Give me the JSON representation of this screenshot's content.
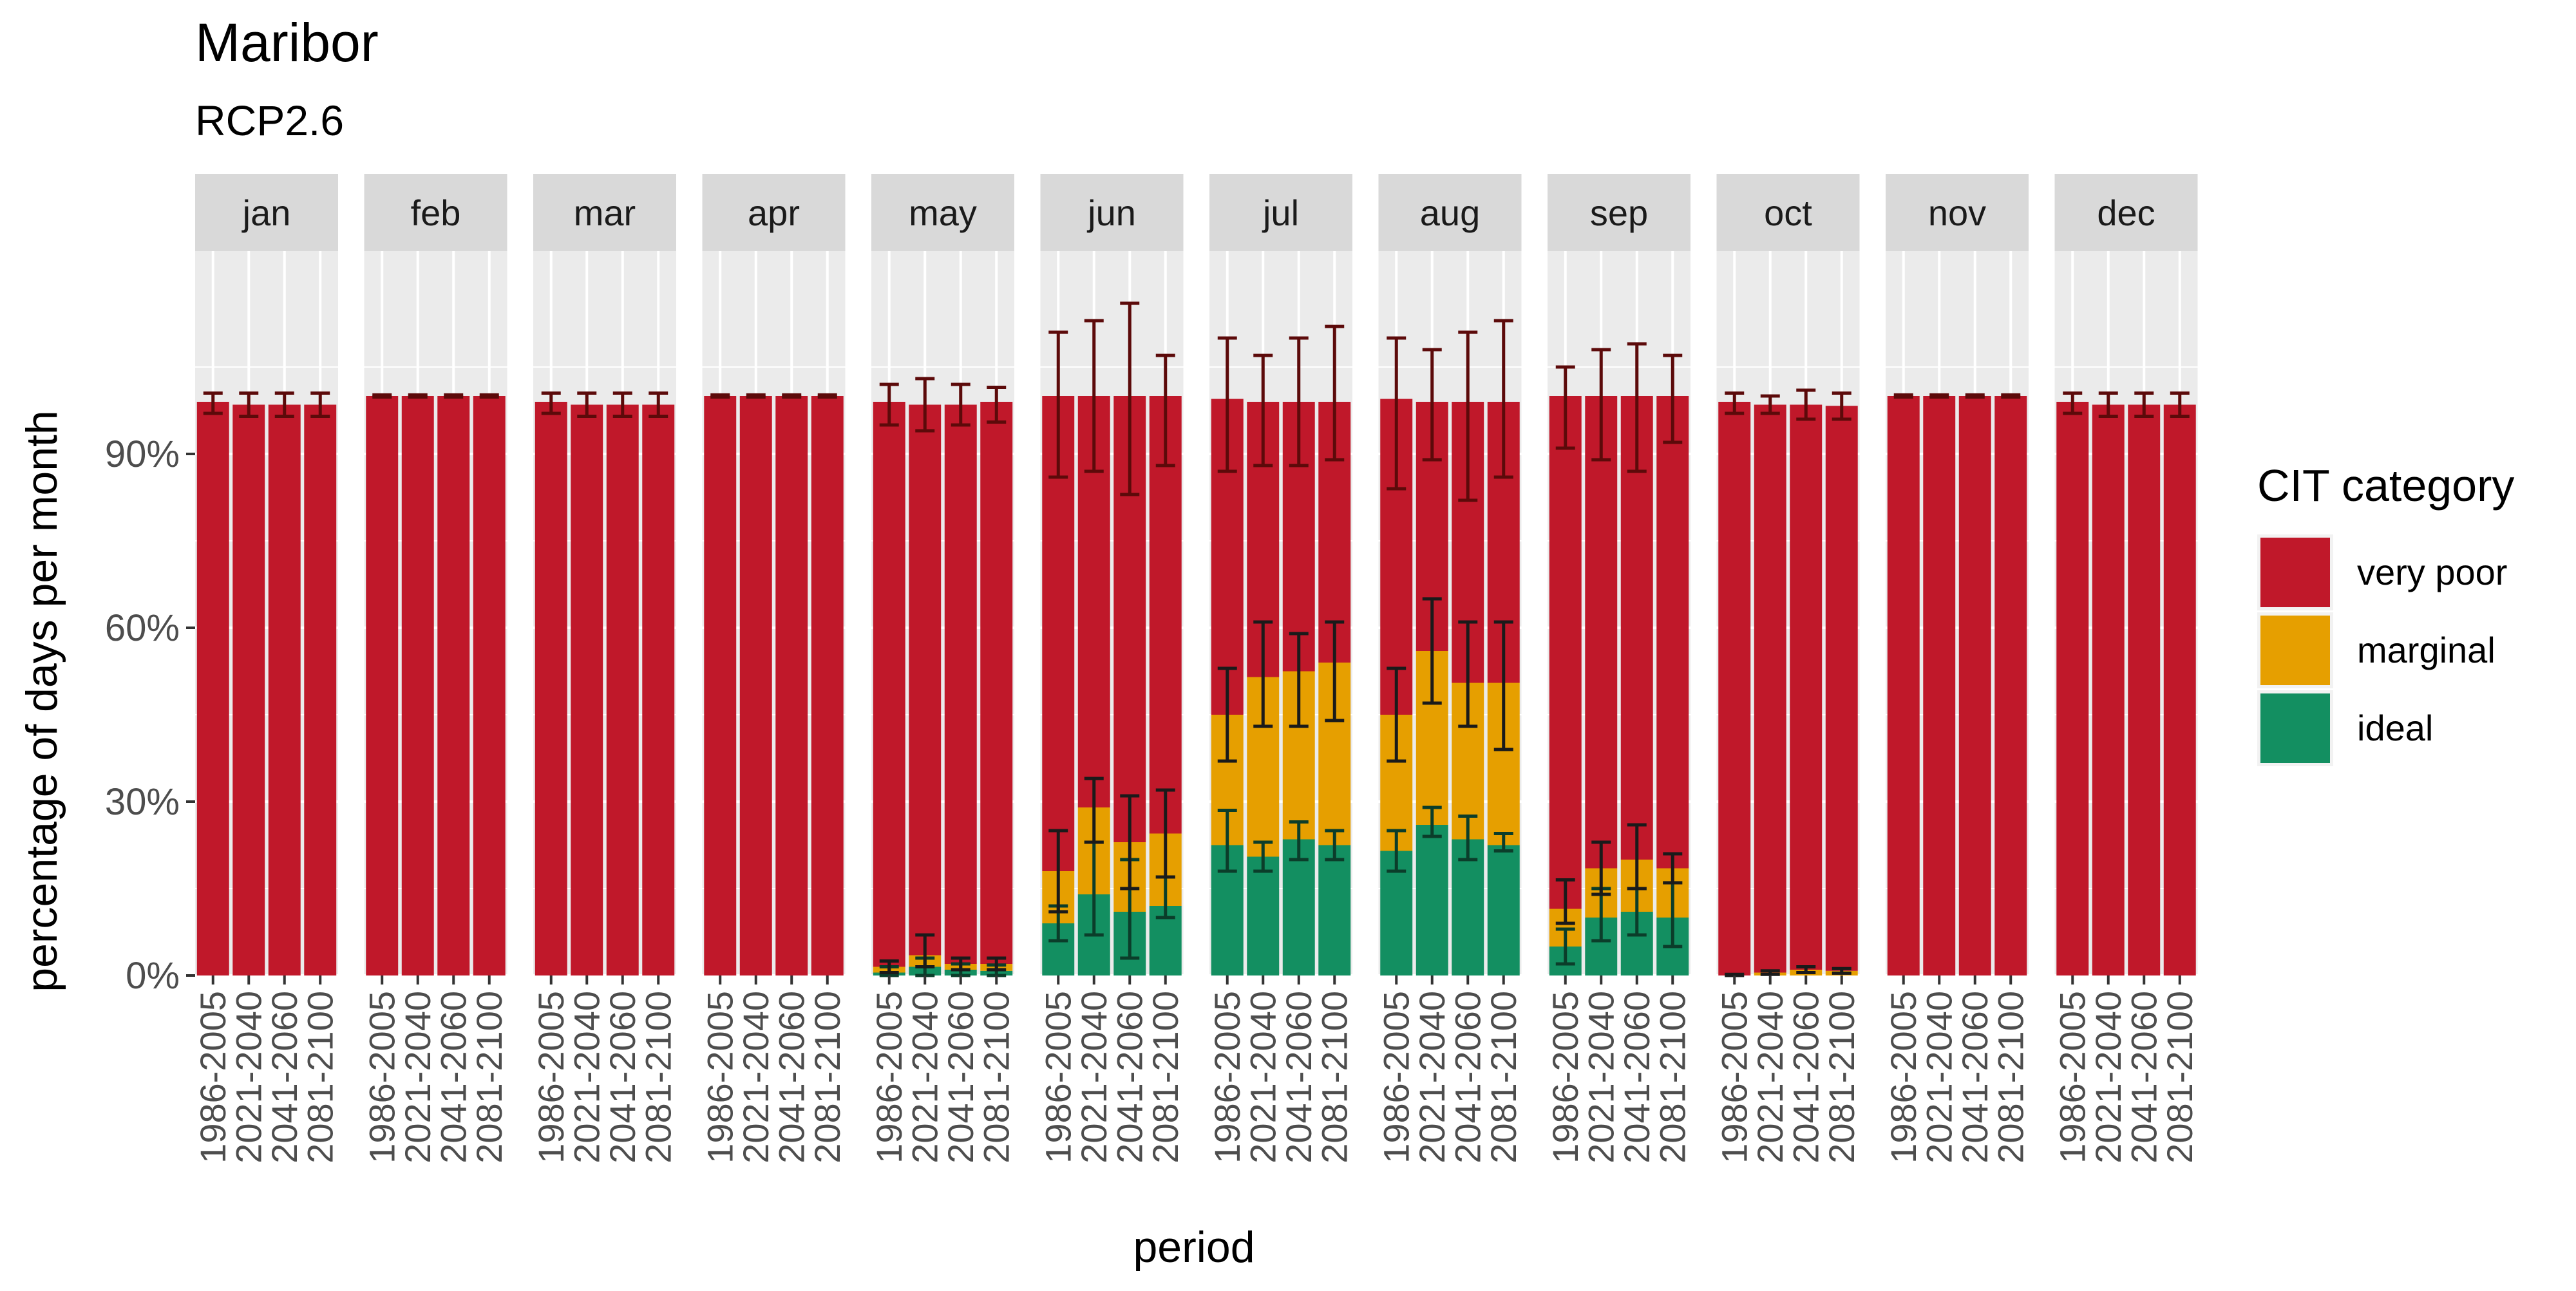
{
  "chart_data": {
    "type": "bar",
    "stacked": true,
    "title": "Maribor",
    "subtitle": "RCP2.6",
    "xlabel": "period",
    "ylabel": "percentage of days per month",
    "ylim": [
      0,
      1.25
    ],
    "yticks": [
      0,
      0.3,
      0.6,
      0.9
    ],
    "ytick_labels": [
      "0%",
      "30%",
      "60%",
      "90%"
    ],
    "grid": true,
    "legend_position": "right",
    "legend_title": "CIT category",
    "categories": [
      "1986-2005",
      "2021-2040",
      "2041-2060",
      "2081-2100"
    ],
    "series": [
      {
        "name": "very poor",
        "color": "#C0182A"
      },
      {
        "name": "marginal",
        "color": "#E69F00"
      },
      {
        "name": "ideal",
        "color": "#138F61"
      }
    ],
    "panels": [
      {
        "month": "jan",
        "ideal": [
          0,
          0,
          0,
          0
        ],
        "marginal": [
          0,
          0,
          0,
          0
        ],
        "very_poor": [
          0.99,
          0.985,
          0.985,
          0.985
        ],
        "err_ideal": [
          null,
          null,
          null,
          null
        ],
        "err_marginal": [
          null,
          null,
          null,
          null
        ],
        "err_total": [
          [
            0.97,
            1.005
          ],
          [
            0.965,
            1.005
          ],
          [
            0.965,
            1.005
          ],
          [
            0.965,
            1.005
          ]
        ]
      },
      {
        "month": "feb",
        "ideal": [
          0,
          0,
          0,
          0
        ],
        "marginal": [
          0,
          0,
          0,
          0
        ],
        "very_poor": [
          1.0,
          1.0,
          1.0,
          1.0
        ],
        "err_ideal": [
          null,
          null,
          null,
          null
        ],
        "err_marginal": [
          null,
          null,
          null,
          null
        ],
        "err_total": [
          [
            0.998,
            1.002
          ],
          [
            0.998,
            1.002
          ],
          [
            0.998,
            1.002
          ],
          [
            0.998,
            1.002
          ]
        ]
      },
      {
        "month": "mar",
        "ideal": [
          0,
          0,
          0,
          0
        ],
        "marginal": [
          0,
          0,
          0,
          0
        ],
        "very_poor": [
          0.99,
          0.985,
          0.985,
          0.985
        ],
        "err_ideal": [
          null,
          null,
          null,
          null
        ],
        "err_marginal": [
          null,
          null,
          null,
          null
        ],
        "err_total": [
          [
            0.97,
            1.005
          ],
          [
            0.965,
            1.005
          ],
          [
            0.965,
            1.005
          ],
          [
            0.965,
            1.005
          ]
        ]
      },
      {
        "month": "apr",
        "ideal": [
          0,
          0,
          0,
          0
        ],
        "marginal": [
          0,
          0,
          0,
          0
        ],
        "very_poor": [
          1.0,
          1.0,
          1.0,
          1.0
        ],
        "err_ideal": [
          null,
          null,
          null,
          null
        ],
        "err_marginal": [
          null,
          null,
          null,
          null
        ],
        "err_total": [
          [
            0.998,
            1.002
          ],
          [
            0.998,
            1.002
          ],
          [
            0.998,
            1.002
          ],
          [
            0.998,
            1.002
          ]
        ]
      },
      {
        "month": "may",
        "ideal": [
          0.005,
          0.015,
          0.01,
          0.008
        ],
        "marginal": [
          0.01,
          0.02,
          0.01,
          0.012
        ],
        "very_poor": [
          0.975,
          0.95,
          0.965,
          0.97
        ],
        "err_ideal": [
          [
            0.0,
            0.015
          ],
          [
            0.0,
            0.03
          ],
          [
            0.0,
            0.02
          ],
          [
            0.0,
            0.018
          ]
        ],
        "err_marginal": [
          [
            0.005,
            0.025
          ],
          [
            0.015,
            0.07
          ],
          [
            0.01,
            0.03
          ],
          [
            0.01,
            0.03
          ]
        ],
        "err_total": [
          [
            0.95,
            1.02
          ],
          [
            0.94,
            1.03
          ],
          [
            0.95,
            1.02
          ],
          [
            0.955,
            1.015
          ]
        ]
      },
      {
        "month": "jun",
        "ideal": [
          0.09,
          0.14,
          0.11,
          0.12
        ],
        "marginal": [
          0.09,
          0.15,
          0.12,
          0.125
        ],
        "very_poor": [
          0.82,
          0.71,
          0.77,
          0.755
        ],
        "err_ideal": [
          [
            0.06,
            0.12
          ],
          [
            0.07,
            0.23
          ],
          [
            0.03,
            0.2
          ],
          [
            0.1,
            0.17
          ]
        ],
        "err_marginal": [
          [
            0.11,
            0.25
          ],
          [
            0.23,
            0.34
          ],
          [
            0.15,
            0.31
          ],
          [
            0.17,
            0.32
          ]
        ],
        "err_total": [
          [
            0.86,
            1.11
          ],
          [
            0.87,
            1.13
          ],
          [
            0.83,
            1.16
          ],
          [
            0.88,
            1.07
          ]
        ]
      },
      {
        "month": "jul",
        "ideal": [
          0.225,
          0.205,
          0.235,
          0.225
        ],
        "marginal": [
          0.225,
          0.31,
          0.29,
          0.315
        ],
        "very_poor": [
          0.545,
          0.475,
          0.465,
          0.45
        ],
        "err_ideal": [
          [
            0.18,
            0.285
          ],
          [
            0.18,
            0.23
          ],
          [
            0.2,
            0.265
          ],
          [
            0.2,
            0.25
          ]
        ],
        "err_marginal": [
          [
            0.37,
            0.53
          ],
          [
            0.43,
            0.61
          ],
          [
            0.43,
            0.59
          ],
          [
            0.44,
            0.61
          ]
        ],
        "err_total": [
          [
            0.87,
            1.1
          ],
          [
            0.88,
            1.07
          ],
          [
            0.88,
            1.1
          ],
          [
            0.89,
            1.12
          ]
        ]
      },
      {
        "month": "aug",
        "ideal": [
          0.215,
          0.26,
          0.235,
          0.225
        ],
        "marginal": [
          0.235,
          0.3,
          0.27,
          0.28
        ],
        "very_poor": [
          0.545,
          0.43,
          0.485,
          0.485
        ],
        "err_ideal": [
          [
            0.18,
            0.25
          ],
          [
            0.24,
            0.29
          ],
          [
            0.2,
            0.275
          ],
          [
            0.215,
            0.245
          ]
        ],
        "err_marginal": [
          [
            0.37,
            0.53
          ],
          [
            0.47,
            0.65
          ],
          [
            0.43,
            0.61
          ],
          [
            0.39,
            0.61
          ]
        ],
        "err_total": [
          [
            0.84,
            1.1
          ],
          [
            0.89,
            1.08
          ],
          [
            0.82,
            1.11
          ],
          [
            0.86,
            1.13
          ]
        ]
      },
      {
        "month": "sep",
        "ideal": [
          0.05,
          0.1,
          0.11,
          0.1
        ],
        "marginal": [
          0.065,
          0.085,
          0.09,
          0.085
        ],
        "very_poor": [
          0.885,
          0.815,
          0.8,
          0.815
        ],
        "err_ideal": [
          [
            0.02,
            0.08
          ],
          [
            0.06,
            0.15
          ],
          [
            0.07,
            0.15
          ],
          [
            0.05,
            0.16
          ]
        ],
        "err_marginal": [
          [
            0.09,
            0.165
          ],
          [
            0.14,
            0.23
          ],
          [
            0.15,
            0.26
          ],
          [
            0.16,
            0.21
          ]
        ],
        "err_total": [
          [
            0.91,
            1.05
          ],
          [
            0.89,
            1.08
          ],
          [
            0.87,
            1.09
          ],
          [
            0.92,
            1.07
          ]
        ]
      },
      {
        "month": "oct",
        "ideal": [
          0,
          0,
          0,
          0
        ],
        "marginal": [
          0.0,
          0.005,
          0.01,
          0.008
        ],
        "very_poor": [
          0.99,
          0.98,
          0.975,
          0.975
        ],
        "err_ideal": [
          null,
          null,
          null,
          null
        ],
        "err_marginal": [
          [
            0.0,
            0.002
          ],
          [
            0.002,
            0.008
          ],
          [
            0.005,
            0.015
          ],
          [
            0.004,
            0.012
          ]
        ],
        "err_total": [
          [
            0.97,
            1.005
          ],
          [
            0.97,
            1.0
          ],
          [
            0.96,
            1.01
          ],
          [
            0.96,
            1.005
          ]
        ]
      },
      {
        "month": "nov",
        "ideal": [
          0,
          0,
          0,
          0
        ],
        "marginal": [
          0,
          0,
          0,
          0
        ],
        "very_poor": [
          1.0,
          1.0,
          1.0,
          1.0
        ],
        "err_ideal": [
          null,
          null,
          null,
          null
        ],
        "err_marginal": [
          null,
          null,
          null,
          null
        ],
        "err_total": [
          [
            0.998,
            1.002
          ],
          [
            0.998,
            1.002
          ],
          [
            0.998,
            1.002
          ],
          [
            0.998,
            1.002
          ]
        ]
      },
      {
        "month": "dec",
        "ideal": [
          0,
          0,
          0,
          0
        ],
        "marginal": [
          0,
          0,
          0,
          0
        ],
        "very_poor": [
          0.99,
          0.985,
          0.985,
          0.985
        ],
        "err_ideal": [
          null,
          null,
          null,
          null
        ],
        "err_marginal": [
          null,
          null,
          null,
          null
        ],
        "err_total": [
          [
            0.97,
            1.005
          ],
          [
            0.965,
            1.005
          ],
          [
            0.965,
            1.005
          ],
          [
            0.965,
            1.005
          ]
        ]
      }
    ]
  }
}
